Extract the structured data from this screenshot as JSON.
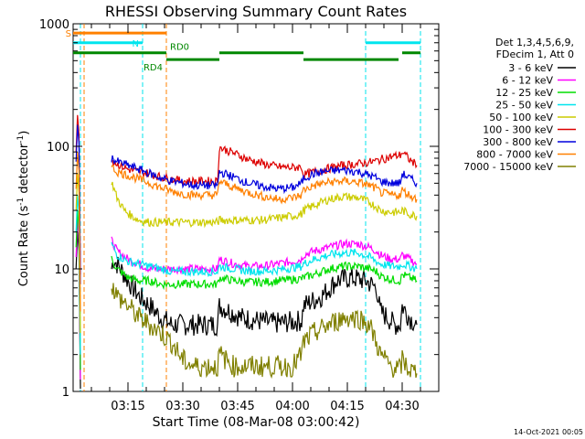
{
  "page": {
    "stamp": "14-Oct-2021 00:05"
  },
  "colors": {
    "3-6": "#000000",
    "6-12": "#ff00ff",
    "12-25": "#00dd00",
    "25-50": "#00e5ee",
    "50-100": "#cccc00",
    "100-300": "#dd0000",
    "300-800": "#0000dd",
    "800-7000": "#ff8000",
    "7000-15000": "#808000",
    "att_line": "#ff8000",
    "saa_line": "#00e5ee",
    "decim": "#008800"
  },
  "chart_data": {
    "type": "line",
    "title": "RHESSI Observing Summary Count Rates",
    "xlabel": "Start Time (08-Mar-08 03:00:42)",
    "ylabel_main": "Count Rate (s",
    "ylabel_sup1": "-1",
    "ylabel_mid": " detector",
    "ylabel_sup2": "-1",
    "ylabel_end": ")",
    "yscale": "log",
    "ylim": [
      1,
      1000
    ],
    "xlim_minutes": [
      0,
      100
    ],
    "ytick_values": [
      1,
      10,
      100,
      1000
    ],
    "ytick_labels": [
      "1",
      "10",
      "100",
      "1000"
    ],
    "xtick_minutes": [
      15,
      30,
      45,
      60,
      75,
      90
    ],
    "xtick_labels": [
      "03:15",
      "03:30",
      "03:45",
      "04:00",
      "04:15",
      "04:30"
    ],
    "legend_header": [
      "Det 1,3,4,5,6,9,",
      "FDecim 1, Att 0"
    ],
    "series": [
      {
        "name": "3 - 6 keV",
        "color_key": "3-6",
        "values": [
          [
            10.5,
            10
          ],
          [
            11,
            12
          ],
          [
            13,
            10
          ],
          [
            15,
            8
          ],
          [
            18,
            6
          ],
          [
            21,
            5
          ],
          [
            24,
            4
          ],
          [
            27,
            3.5
          ],
          [
            30,
            3.5
          ],
          [
            33,
            3.5
          ],
          [
            36,
            3.5
          ],
          [
            39.5,
            3.5
          ],
          [
            40,
            5
          ],
          [
            43,
            4.5
          ],
          [
            46,
            4
          ],
          [
            50,
            3.8
          ],
          [
            55,
            3.6
          ],
          [
            60,
            3.7
          ],
          [
            62.5,
            3.8
          ],
          [
            63,
            5
          ],
          [
            68,
            6
          ],
          [
            72,
            8
          ],
          [
            76,
            8.5
          ],
          [
            80,
            8
          ],
          [
            83,
            7
          ],
          [
            84,
            4.5
          ],
          [
            86,
            4
          ],
          [
            88,
            3.5
          ],
          [
            89.5,
            3.5
          ],
          [
            90,
            5
          ],
          [
            92,
            4
          ],
          [
            94,
            3.5
          ]
        ]
      },
      {
        "name": "6 - 12 keV",
        "color_key": "6-12",
        "values": [
          [
            10.5,
            17
          ],
          [
            12,
            14
          ],
          [
            15,
            12
          ],
          [
            18,
            11
          ],
          [
            21,
            10
          ],
          [
            24,
            10
          ],
          [
            27,
            10
          ],
          [
            30,
            10
          ],
          [
            33,
            10
          ],
          [
            36,
            10
          ],
          [
            39.5,
            10
          ],
          [
            40,
            12
          ],
          [
            44,
            11
          ],
          [
            48,
            10.5
          ],
          [
            52,
            10.5
          ],
          [
            56,
            11
          ],
          [
            60,
            11.5
          ],
          [
            62.5,
            12
          ],
          [
            63,
            13
          ],
          [
            66,
            14
          ],
          [
            70,
            15
          ],
          [
            74,
            16
          ],
          [
            78,
            16
          ],
          [
            81,
            15
          ],
          [
            83,
            14
          ],
          [
            84,
            13
          ],
          [
            87,
            12
          ],
          [
            89.5,
            12
          ],
          [
            90,
            13
          ],
          [
            92,
            12
          ],
          [
            94,
            11
          ]
        ]
      },
      {
        "name": "12 - 25 keV",
        "color_key": "12-25",
        "values": [
          [
            10.5,
            12
          ],
          [
            12,
            10
          ],
          [
            15,
            8.5
          ],
          [
            18,
            8
          ],
          [
            21,
            8
          ],
          [
            24,
            7.5
          ],
          [
            27,
            7.5
          ],
          [
            30,
            7.5
          ],
          [
            33,
            7.5
          ],
          [
            36,
            7.5
          ],
          [
            39.5,
            7.5
          ],
          [
            40,
            8.5
          ],
          [
            44,
            8
          ],
          [
            48,
            7.8
          ],
          [
            52,
            7.8
          ],
          [
            56,
            8
          ],
          [
            60,
            8.2
          ],
          [
            62.5,
            8.3
          ],
          [
            63,
            8.5
          ],
          [
            66,
            9
          ],
          [
            70,
            10
          ],
          [
            74,
            10.5
          ],
          [
            78,
            10.5
          ],
          [
            81,
            10
          ],
          [
            83,
            9.5
          ],
          [
            84,
            8.8
          ],
          [
            87,
            8.2
          ],
          [
            89.5,
            8
          ],
          [
            90,
            9
          ],
          [
            92,
            8.5
          ],
          [
            94,
            8
          ]
        ]
      },
      {
        "name": "25 - 50 keV",
        "color_key": "25-50",
        "values": [
          [
            10.5,
            16
          ],
          [
            12,
            13
          ],
          [
            15,
            11.5
          ],
          [
            18,
            11
          ],
          [
            21,
            10.5
          ],
          [
            24,
            10
          ],
          [
            27,
            9.5
          ],
          [
            30,
            9.5
          ],
          [
            33,
            9.5
          ],
          [
            36,
            9.5
          ],
          [
            39.5,
            9.5
          ],
          [
            40,
            10.5
          ],
          [
            44,
            10
          ],
          [
            48,
            9.6
          ],
          [
            52,
            9.6
          ],
          [
            56,
            9.8
          ],
          [
            60,
            10.2
          ],
          [
            62.5,
            10.5
          ],
          [
            63,
            11
          ],
          [
            66,
            12
          ],
          [
            70,
            13
          ],
          [
            74,
            13.5
          ],
          [
            78,
            13.5
          ],
          [
            81,
            12.5
          ],
          [
            83,
            11.5
          ],
          [
            84,
            11
          ],
          [
            87,
            10.5
          ],
          [
            89.5,
            10.5
          ],
          [
            90,
            11
          ],
          [
            92,
            10.5
          ],
          [
            94,
            10
          ]
        ]
      },
      {
        "name": "50 - 100 keV",
        "color_key": "50-100",
        "values": [
          [
            10.5,
            52
          ],
          [
            12,
            38
          ],
          [
            14,
            30
          ],
          [
            16,
            27
          ],
          [
            18,
            25
          ],
          [
            21,
            24
          ],
          [
            24,
            24
          ],
          [
            27,
            24
          ],
          [
            30,
            24
          ],
          [
            33,
            24
          ],
          [
            36,
            24
          ],
          [
            39.5,
            24
          ],
          [
            40,
            25
          ],
          [
            44,
            25
          ],
          [
            48,
            25
          ],
          [
            52,
            25
          ],
          [
            56,
            26
          ],
          [
            60,
            27
          ],
          [
            62.5,
            28
          ],
          [
            63,
            30
          ],
          [
            66,
            33
          ],
          [
            70,
            37
          ],
          [
            74,
            39
          ],
          [
            78,
            38
          ],
          [
            81,
            35
          ],
          [
            83,
            32
          ],
          [
            84,
            30
          ],
          [
            87,
            29
          ],
          [
            89.5,
            29
          ],
          [
            90,
            30
          ],
          [
            92,
            28
          ],
          [
            94,
            27
          ]
        ]
      },
      {
        "name": "100 - 300 keV",
        "color_key": "100-300",
        "values": [
          [
            10.5,
            78
          ],
          [
            12,
            72
          ],
          [
            15,
            65
          ],
          [
            18,
            62
          ],
          [
            21,
            60
          ],
          [
            24,
            56
          ],
          [
            27,
            54
          ],
          [
            30,
            52
          ],
          [
            33,
            52
          ],
          [
            36,
            52
          ],
          [
            39.5,
            52
          ],
          [
            40,
            98
          ],
          [
            44,
            88
          ],
          [
            48,
            78
          ],
          [
            52,
            72
          ],
          [
            56,
            68
          ],
          [
            60,
            67
          ],
          [
            62.5,
            68
          ],
          [
            63,
            58
          ],
          [
            66,
            62
          ],
          [
            70,
            66
          ],
          [
            74,
            70
          ],
          [
            78,
            72
          ],
          [
            81,
            74
          ],
          [
            83,
            76
          ],
          [
            84,
            78
          ],
          [
            87,
            82
          ],
          [
            89.5,
            85
          ],
          [
            90,
            90
          ],
          [
            92,
            78
          ],
          [
            94,
            70
          ]
        ]
      },
      {
        "name": "300 - 800 keV",
        "color_key": "300-800",
        "values": [
          [
            10.5,
            80
          ],
          [
            12,
            75
          ],
          [
            15,
            70
          ],
          [
            18,
            65
          ],
          [
            21,
            60
          ],
          [
            24,
            55
          ],
          [
            27,
            52
          ],
          [
            30,
            50
          ],
          [
            33,
            48
          ],
          [
            36,
            48
          ],
          [
            39.5,
            48
          ],
          [
            40,
            62
          ],
          [
            44,
            56
          ],
          [
            48,
            50
          ],
          [
            52,
            47
          ],
          [
            56,
            45
          ],
          [
            60,
            46
          ],
          [
            62.5,
            50
          ],
          [
            63,
            55
          ],
          [
            66,
            60
          ],
          [
            70,
            63
          ],
          [
            74,
            64
          ],
          [
            78,
            62
          ],
          [
            81,
            58
          ],
          [
            83,
            55
          ],
          [
            84,
            52
          ],
          [
            87,
            50
          ],
          [
            89.5,
            50
          ],
          [
            90,
            60
          ],
          [
            92,
            55
          ],
          [
            94,
            50
          ]
        ]
      },
      {
        "name": "800 - 7000 keV",
        "color_key": "800-7000",
        "values": [
          [
            10.5,
            68
          ],
          [
            12,
            62
          ],
          [
            15,
            58
          ],
          [
            18,
            54
          ],
          [
            21,
            50
          ],
          [
            24,
            46
          ],
          [
            27,
            43
          ],
          [
            30,
            41
          ],
          [
            33,
            40
          ],
          [
            36,
            40
          ],
          [
            39.5,
            40
          ],
          [
            40,
            52
          ],
          [
            44,
            46
          ],
          [
            48,
            42
          ],
          [
            52,
            39
          ],
          [
            56,
            37
          ],
          [
            60,
            38
          ],
          [
            62.5,
            40
          ],
          [
            63,
            44
          ],
          [
            66,
            48
          ],
          [
            70,
            51
          ],
          [
            74,
            52
          ],
          [
            78,
            51
          ],
          [
            81,
            48
          ],
          [
            83,
            45
          ],
          [
            84,
            42
          ],
          [
            87,
            40
          ],
          [
            89.5,
            40
          ],
          [
            90,
            44
          ],
          [
            92,
            40
          ],
          [
            94,
            37
          ]
        ]
      },
      {
        "name": "7000 - 15000 keV",
        "color_key": "7000-15000",
        "values": [
          [
            10.5,
            7.5
          ],
          [
            12,
            6
          ],
          [
            15,
            5
          ],
          [
            18,
            4
          ],
          [
            21,
            3.5
          ],
          [
            24,
            3
          ],
          [
            27,
            2.5
          ],
          [
            29,
            2
          ],
          [
            30,
            1.8
          ],
          [
            33,
            1.6
          ],
          [
            36,
            1.6
          ],
          [
            39.5,
            1.6
          ],
          [
            40,
            2
          ],
          [
            44,
            1.6
          ],
          [
            48,
            1.6
          ],
          [
            52,
            1.6
          ],
          [
            56,
            1.6
          ],
          [
            60,
            1.6
          ],
          [
            62.5,
            2
          ],
          [
            63,
            2.5
          ],
          [
            66,
            3
          ],
          [
            70,
            3.5
          ],
          [
            74,
            4
          ],
          [
            78,
            4
          ],
          [
            81,
            3.5
          ],
          [
            83,
            2.5
          ],
          [
            84,
            2
          ],
          [
            87,
            1.6
          ],
          [
            89.5,
            1.5
          ],
          [
            90,
            1.8
          ],
          [
            92,
            1.5
          ],
          [
            94,
            1.4
          ]
        ]
      }
    ],
    "spike": {
      "minutes": [
        0.8,
        1.2,
        1.6,
        2.0
      ],
      "values": {
        "100-300": 180,
        "300-800": 150,
        "800-7000": 90,
        "50-100": 60,
        "25-50": 40,
        "12-25": 30,
        "6-12": 25,
        "3-6": 20
      }
    },
    "vlines": [
      {
        "minute": 3.0,
        "color_key": "att_line"
      },
      {
        "minute": 2.0,
        "color_key": "saa_line"
      },
      {
        "minute": 19.0,
        "color_key": "saa_line"
      },
      {
        "minute": 25.5,
        "color_key": "att_line"
      },
      {
        "minute": 80.0,
        "color_key": "saa_line"
      },
      {
        "minute": 95.0,
        "color_key": "saa_line"
      }
    ],
    "flags": {
      "s": {
        "label": "S",
        "segments": [
          [
            0,
            25.5
          ]
        ],
        "level": 840,
        "color_key": "att_line"
      },
      "n": {
        "label": "N",
        "segments": [
          [
            0,
            19
          ],
          [
            80,
            95
          ]
        ],
        "level": 700,
        "color_key": "saa_line"
      },
      "rd0": {
        "label": "RD0",
        "segments": [
          [
            0,
            25.5
          ],
          [
            40,
            63
          ],
          [
            90,
            95
          ]
        ],
        "level": 580,
        "color_key": "decim"
      },
      "rd4": {
        "label": "RD4",
        "segments": [
          [
            25.5,
            40
          ],
          [
            63,
            89
          ]
        ],
        "level": 510,
        "color_key": "decim"
      }
    }
  }
}
